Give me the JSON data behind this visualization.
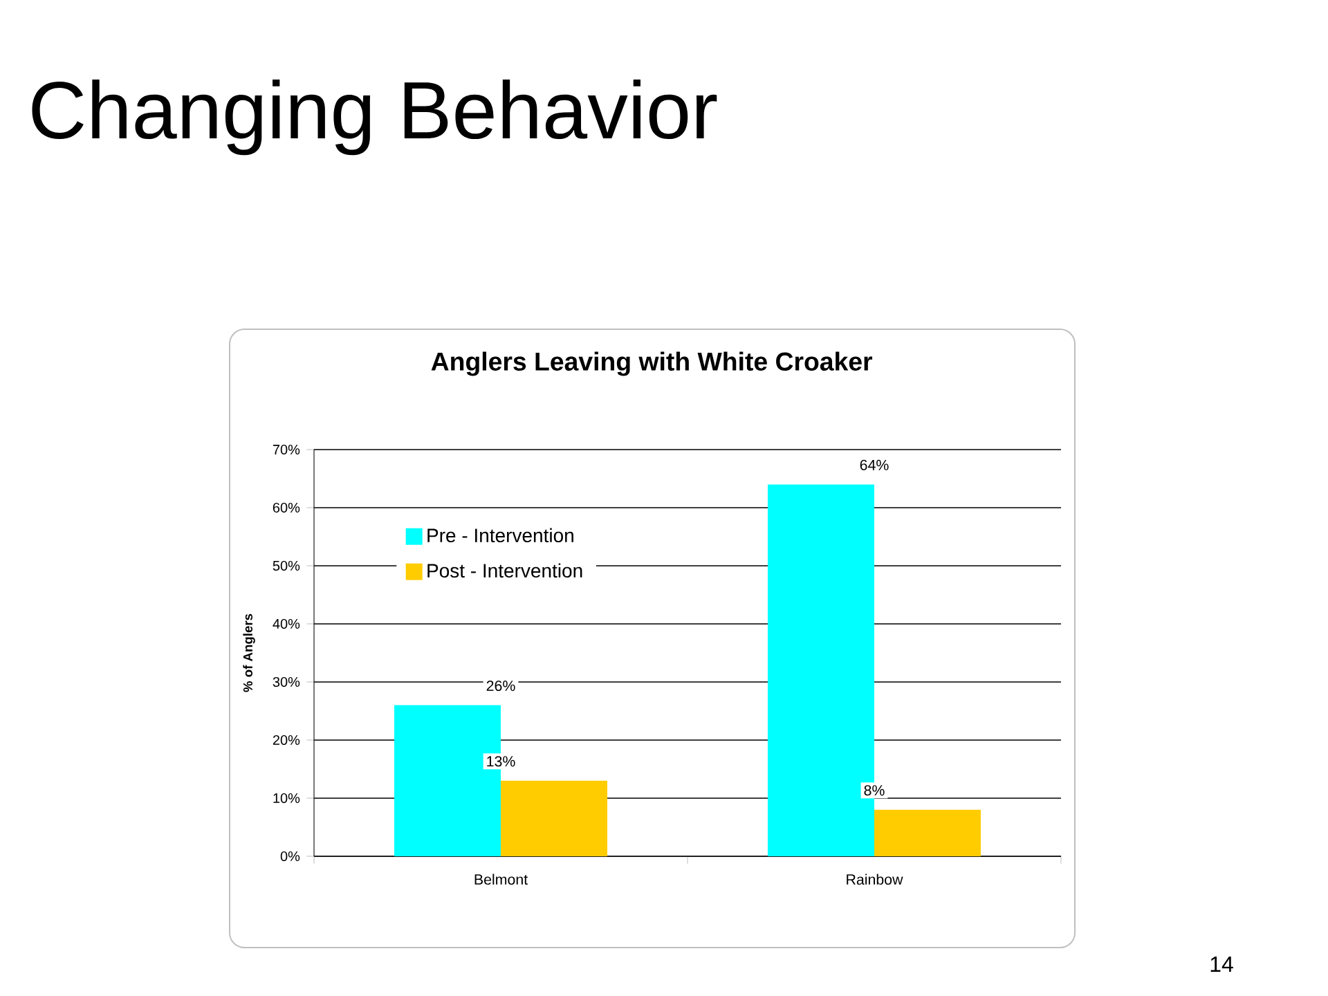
{
  "chart_data": {
    "type": "bar",
    "title": "Changing Behavior",
    "subtitle": "Anglers Leaving with White Croaker",
    "ylabel": "% of Anglers",
    "categories": [
      "Belmont",
      "Rainbow"
    ],
    "series": [
      {
        "name": "Pre - Intervention",
        "color": "#00ffff",
        "values": [
          26,
          64
        ],
        "value_labels": [
          "26%",
          "64%"
        ]
      },
      {
        "name": "Post - Intervention",
        "color": "#ffcc00",
        "values": [
          13,
          8
        ],
        "value_labels": [
          "13%",
          "8%"
        ]
      }
    ],
    "ylim": [
      0,
      70
    ],
    "yticks": [
      {
        "value": 0,
        "label": "0%"
      },
      {
        "value": 10,
        "label": "10%"
      },
      {
        "value": 20,
        "label": "20%"
      },
      {
        "value": 30,
        "label": "30%"
      },
      {
        "value": 40,
        "label": "40%"
      },
      {
        "value": 50,
        "label": "50%"
      },
      {
        "value": 60,
        "label": "60%"
      },
      {
        "value": 70,
        "label": "70%"
      }
    ],
    "grid": "y",
    "legend": "top left",
    "annotations": [
      "14"
    ]
  }
}
